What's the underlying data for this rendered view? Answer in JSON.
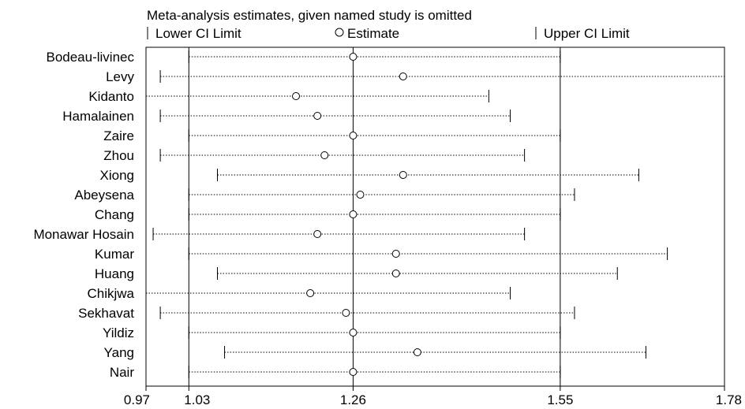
{
  "chart_data": {
    "type": "forest",
    "title": "Meta-analysis estimates, given named study is omitted",
    "legend": {
      "lower": "Lower CI Limit",
      "estimate": "Estimate",
      "upper": "Upper CI Limit",
      "placement": "top"
    },
    "x_ticks": [
      "0.97",
      "1.03",
      "1.26",
      "1.55",
      "1.78"
    ],
    "xlim": [
      0.97,
      1.78
    ],
    "reference_lines": [
      1.03,
      1.26,
      1.55
    ],
    "studies": [
      {
        "name": "Bodeau-livinec",
        "lower": 1.03,
        "estimate": 1.26,
        "upper": 1.55
      },
      {
        "name": "Levy",
        "lower": 0.99,
        "estimate": 1.33,
        "upper": 1.78
      },
      {
        "name": "Kidanto",
        "lower": 0.97,
        "estimate": 1.18,
        "upper": 1.45
      },
      {
        "name": "Hamalainen",
        "lower": 0.99,
        "estimate": 1.21,
        "upper": 1.48
      },
      {
        "name": "Zaire",
        "lower": 1.03,
        "estimate": 1.26,
        "upper": 1.55
      },
      {
        "name": "Zhou",
        "lower": 0.99,
        "estimate": 1.22,
        "upper": 1.5
      },
      {
        "name": "Xiong",
        "lower": 1.07,
        "estimate": 1.33,
        "upper": 1.66
      },
      {
        "name": "Abeysena",
        "lower": 1.03,
        "estimate": 1.27,
        "upper": 1.57
      },
      {
        "name": "Chang",
        "lower": 1.03,
        "estimate": 1.26,
        "upper": 1.55
      },
      {
        "name": "Monawar Hosain",
        "lower": 0.98,
        "estimate": 1.21,
        "upper": 1.5
      },
      {
        "name": "Kumar",
        "lower": 1.03,
        "estimate": 1.32,
        "upper": 1.7
      },
      {
        "name": "Huang",
        "lower": 1.07,
        "estimate": 1.32,
        "upper": 1.63
      },
      {
        "name": "Chikjwa",
        "lower": 0.97,
        "estimate": 1.2,
        "upper": 1.48
      },
      {
        "name": "Sekhavat",
        "lower": 0.99,
        "estimate": 1.25,
        "upper": 1.57
      },
      {
        "name": "Yildiz",
        "lower": 1.03,
        "estimate": 1.26,
        "upper": 1.55
      },
      {
        "name": "Yang",
        "lower": 1.08,
        "estimate": 1.35,
        "upper": 1.67
      },
      {
        "name": "Nair",
        "lower": 1.03,
        "estimate": 1.26,
        "upper": 1.55
      }
    ]
  }
}
